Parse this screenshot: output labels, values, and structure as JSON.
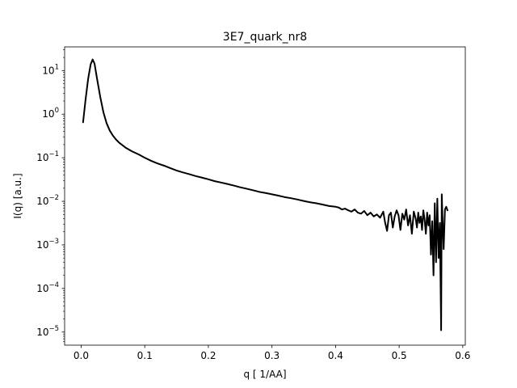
{
  "chart_data": {
    "type": "line",
    "title": "3E7_quark_nr8",
    "xlabel": "q [ 1/AA]",
    "ylabel": "I(q) [a.u.]",
    "xlim": [
      -0.026,
      0.604
    ],
    "ylim": [
      5e-06,
      35
    ],
    "yscale": "log",
    "grid": false,
    "x_ticks": [
      {
        "value": 0.0,
        "label": "0.0"
      },
      {
        "value": 0.1,
        "label": "0.1"
      },
      {
        "value": 0.2,
        "label": "0.2"
      },
      {
        "value": 0.3,
        "label": "0.3"
      },
      {
        "value": 0.4,
        "label": "0.4"
      },
      {
        "value": 0.5,
        "label": "0.5"
      },
      {
        "value": 0.6,
        "label": "0.6"
      }
    ],
    "y_ticks": [
      {
        "value": 10,
        "base": "10",
        "exp": "1"
      },
      {
        "value": 1,
        "base": "10",
        "exp": "0"
      },
      {
        "value": 0.1,
        "base": "10",
        "exp": "−1"
      },
      {
        "value": 0.01,
        "base": "10",
        "exp": "−2"
      },
      {
        "value": 0.001,
        "base": "10",
        "exp": "−3"
      },
      {
        "value": 0.0001,
        "base": "10",
        "exp": "−4"
      },
      {
        "value": 1e-05,
        "base": "10",
        "exp": "−5"
      }
    ],
    "series": [
      {
        "color": "#000000",
        "x": [
          0.003,
          0.007,
          0.011,
          0.015,
          0.018,
          0.021,
          0.025,
          0.03,
          0.035,
          0.04,
          0.045,
          0.05,
          0.055,
          0.06,
          0.07,
          0.08,
          0.09,
          0.1,
          0.11,
          0.12,
          0.13,
          0.14,
          0.15,
          0.16,
          0.17,
          0.18,
          0.19,
          0.2,
          0.21,
          0.22,
          0.23,
          0.24,
          0.25,
          0.26,
          0.27,
          0.28,
          0.29,
          0.3,
          0.31,
          0.32,
          0.33,
          0.34,
          0.35,
          0.36,
          0.37,
          0.38,
          0.39,
          0.4,
          0.405,
          0.41,
          0.415,
          0.42,
          0.425,
          0.43,
          0.435,
          0.44,
          0.445,
          0.45,
          0.455,
          0.46,
          0.465,
          0.47,
          0.475,
          0.478,
          0.481,
          0.484,
          0.487,
          0.49,
          0.493,
          0.496,
          0.499,
          0.502,
          0.505,
          0.508,
          0.511,
          0.514,
          0.517,
          0.52,
          0.523,
          0.526,
          0.528,
          0.53,
          0.532,
          0.534,
          0.536,
          0.538,
          0.54,
          0.542,
          0.544,
          0.546,
          0.548,
          0.55,
          0.552,
          0.554,
          0.556,
          0.558,
          0.56,
          0.562,
          0.564,
          0.566,
          0.567,
          0.568,
          0.57,
          0.572,
          0.574,
          0.576
        ],
        "y": [
          0.65,
          2.2,
          6.5,
          14.0,
          18.0,
          14.5,
          6.5,
          2.5,
          1.1,
          0.62,
          0.42,
          0.32,
          0.26,
          0.22,
          0.17,
          0.14,
          0.12,
          0.1,
          0.085,
          0.074,
          0.066,
          0.058,
          0.051,
          0.046,
          0.042,
          0.038,
          0.035,
          0.032,
          0.029,
          0.027,
          0.025,
          0.023,
          0.021,
          0.0195,
          0.018,
          0.0165,
          0.0155,
          0.0145,
          0.0135,
          0.0125,
          0.0118,
          0.011,
          0.0102,
          0.0095,
          0.009,
          0.0084,
          0.0078,
          0.0075,
          0.0072,
          0.0065,
          0.0068,
          0.0062,
          0.0058,
          0.0065,
          0.0055,
          0.0052,
          0.006,
          0.0048,
          0.0055,
          0.0045,
          0.005,
          0.0042,
          0.0058,
          0.0032,
          0.0021,
          0.0048,
          0.0055,
          0.0025,
          0.0045,
          0.0062,
          0.0048,
          0.0022,
          0.0052,
          0.0038,
          0.0065,
          0.0028,
          0.0048,
          0.0018,
          0.0058,
          0.004,
          0.0025,
          0.0055,
          0.0032,
          0.0045,
          0.0022,
          0.0062,
          0.0038,
          0.0018,
          0.0055,
          0.0028,
          0.0048,
          0.0006,
          0.0035,
          0.0002,
          0.009,
          0.0004,
          0.0115,
          0.0005,
          0.0032,
          1.1e-05,
          0.0145,
          0.0048,
          0.0008,
          0.0065,
          0.0075,
          0.0062
        ]
      }
    ]
  }
}
